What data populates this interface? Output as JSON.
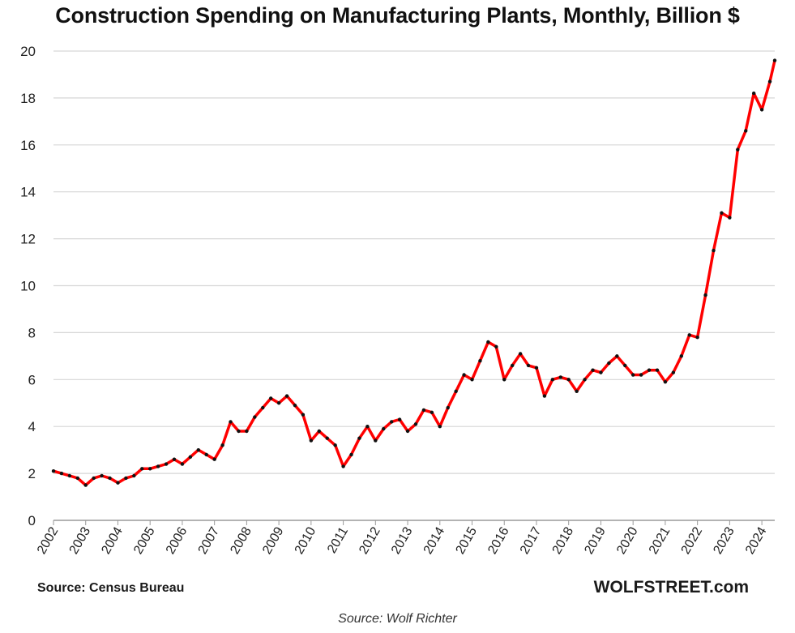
{
  "chart_data": {
    "type": "line",
    "title": "Construction Spending on Manufacturing Plants, Monthly, Billion $",
    "xlabel": "",
    "ylabel": "",
    "ylim": [
      0,
      20
    ],
    "yticks": [
      0,
      2,
      4,
      6,
      8,
      10,
      12,
      14,
      16,
      18,
      20
    ],
    "xlim": [
      2002,
      2024.4
    ],
    "xticks": [
      "2002",
      "2003",
      "2004",
      "2005",
      "2006",
      "2007",
      "2008",
      "2009",
      "2010",
      "2011",
      "2012",
      "2013",
      "2014",
      "2015",
      "2016",
      "2017",
      "2018",
      "2019",
      "2020",
      "2021",
      "2022",
      "2023",
      "2024"
    ],
    "grid": true,
    "legend": "none",
    "line_color": "#ff0000",
    "marker_color": "#111111",
    "series": [
      {
        "x": [
          2002.0,
          2002.25,
          2002.5,
          2002.75,
          2003.0,
          2003.25,
          2003.5,
          2003.75,
          2004.0,
          2004.25,
          2004.5,
          2004.75,
          2005.0,
          2005.25,
          2005.5,
          2005.75,
          2006.0,
          2006.25,
          2006.5,
          2006.75,
          2007.0,
          2007.25,
          2007.5,
          2007.75,
          2008.0,
          2008.25,
          2008.5,
          2008.75,
          2009.0,
          2009.25,
          2009.5,
          2009.75,
          2010.0,
          2010.25,
          2010.5,
          2010.75,
          2011.0,
          2011.25,
          2011.5,
          2011.75,
          2012.0,
          2012.25,
          2012.5,
          2012.75,
          2013.0,
          2013.25,
          2013.5,
          2013.75,
          2014.0,
          2014.25,
          2014.5,
          2014.75,
          2015.0,
          2015.25,
          2015.5,
          2015.75,
          2016.0,
          2016.25,
          2016.5,
          2016.75,
          2017.0,
          2017.25,
          2017.5,
          2017.75,
          2018.0,
          2018.25,
          2018.5,
          2018.75,
          2019.0,
          2019.25,
          2019.5,
          2019.75,
          2020.0,
          2020.25,
          2020.5,
          2020.75,
          2021.0,
          2021.25,
          2021.5,
          2021.75,
          2022.0,
          2022.25,
          2022.5,
          2022.75,
          2023.0,
          2023.25,
          2023.5,
          2023.75,
          2024.0,
          2024.25,
          2024.4
        ],
        "values": [
          2.1,
          2.0,
          1.9,
          1.8,
          1.5,
          1.8,
          1.9,
          1.8,
          1.6,
          1.8,
          1.9,
          2.2,
          2.2,
          2.3,
          2.4,
          2.6,
          2.4,
          2.7,
          3.0,
          2.8,
          2.6,
          3.2,
          4.2,
          3.8,
          3.8,
          4.4,
          4.8,
          5.2,
          5.0,
          5.3,
          4.9,
          4.5,
          3.4,
          3.8,
          3.5,
          3.2,
          2.3,
          2.8,
          3.5,
          4.0,
          3.4,
          3.9,
          4.2,
          4.3,
          3.8,
          4.1,
          4.7,
          4.6,
          4.0,
          4.8,
          5.5,
          6.2,
          6.0,
          6.8,
          7.6,
          7.4,
          6.0,
          6.6,
          7.1,
          6.6,
          6.5,
          5.3,
          6.0,
          6.1,
          6.0,
          5.5,
          6.0,
          6.4,
          6.3,
          6.7,
          7.0,
          6.6,
          6.2,
          6.2,
          6.4,
          6.4,
          5.9,
          6.3,
          7.0,
          7.9,
          7.8,
          9.6,
          11.5,
          13.1,
          12.9,
          15.8,
          16.6,
          18.2,
          17.5,
          18.7,
          19.6
        ]
      }
    ]
  },
  "source_label": "Source: Census Bureau",
  "watermark": "WOLFSTREET.com",
  "caption": "Source: Wolf Richter"
}
